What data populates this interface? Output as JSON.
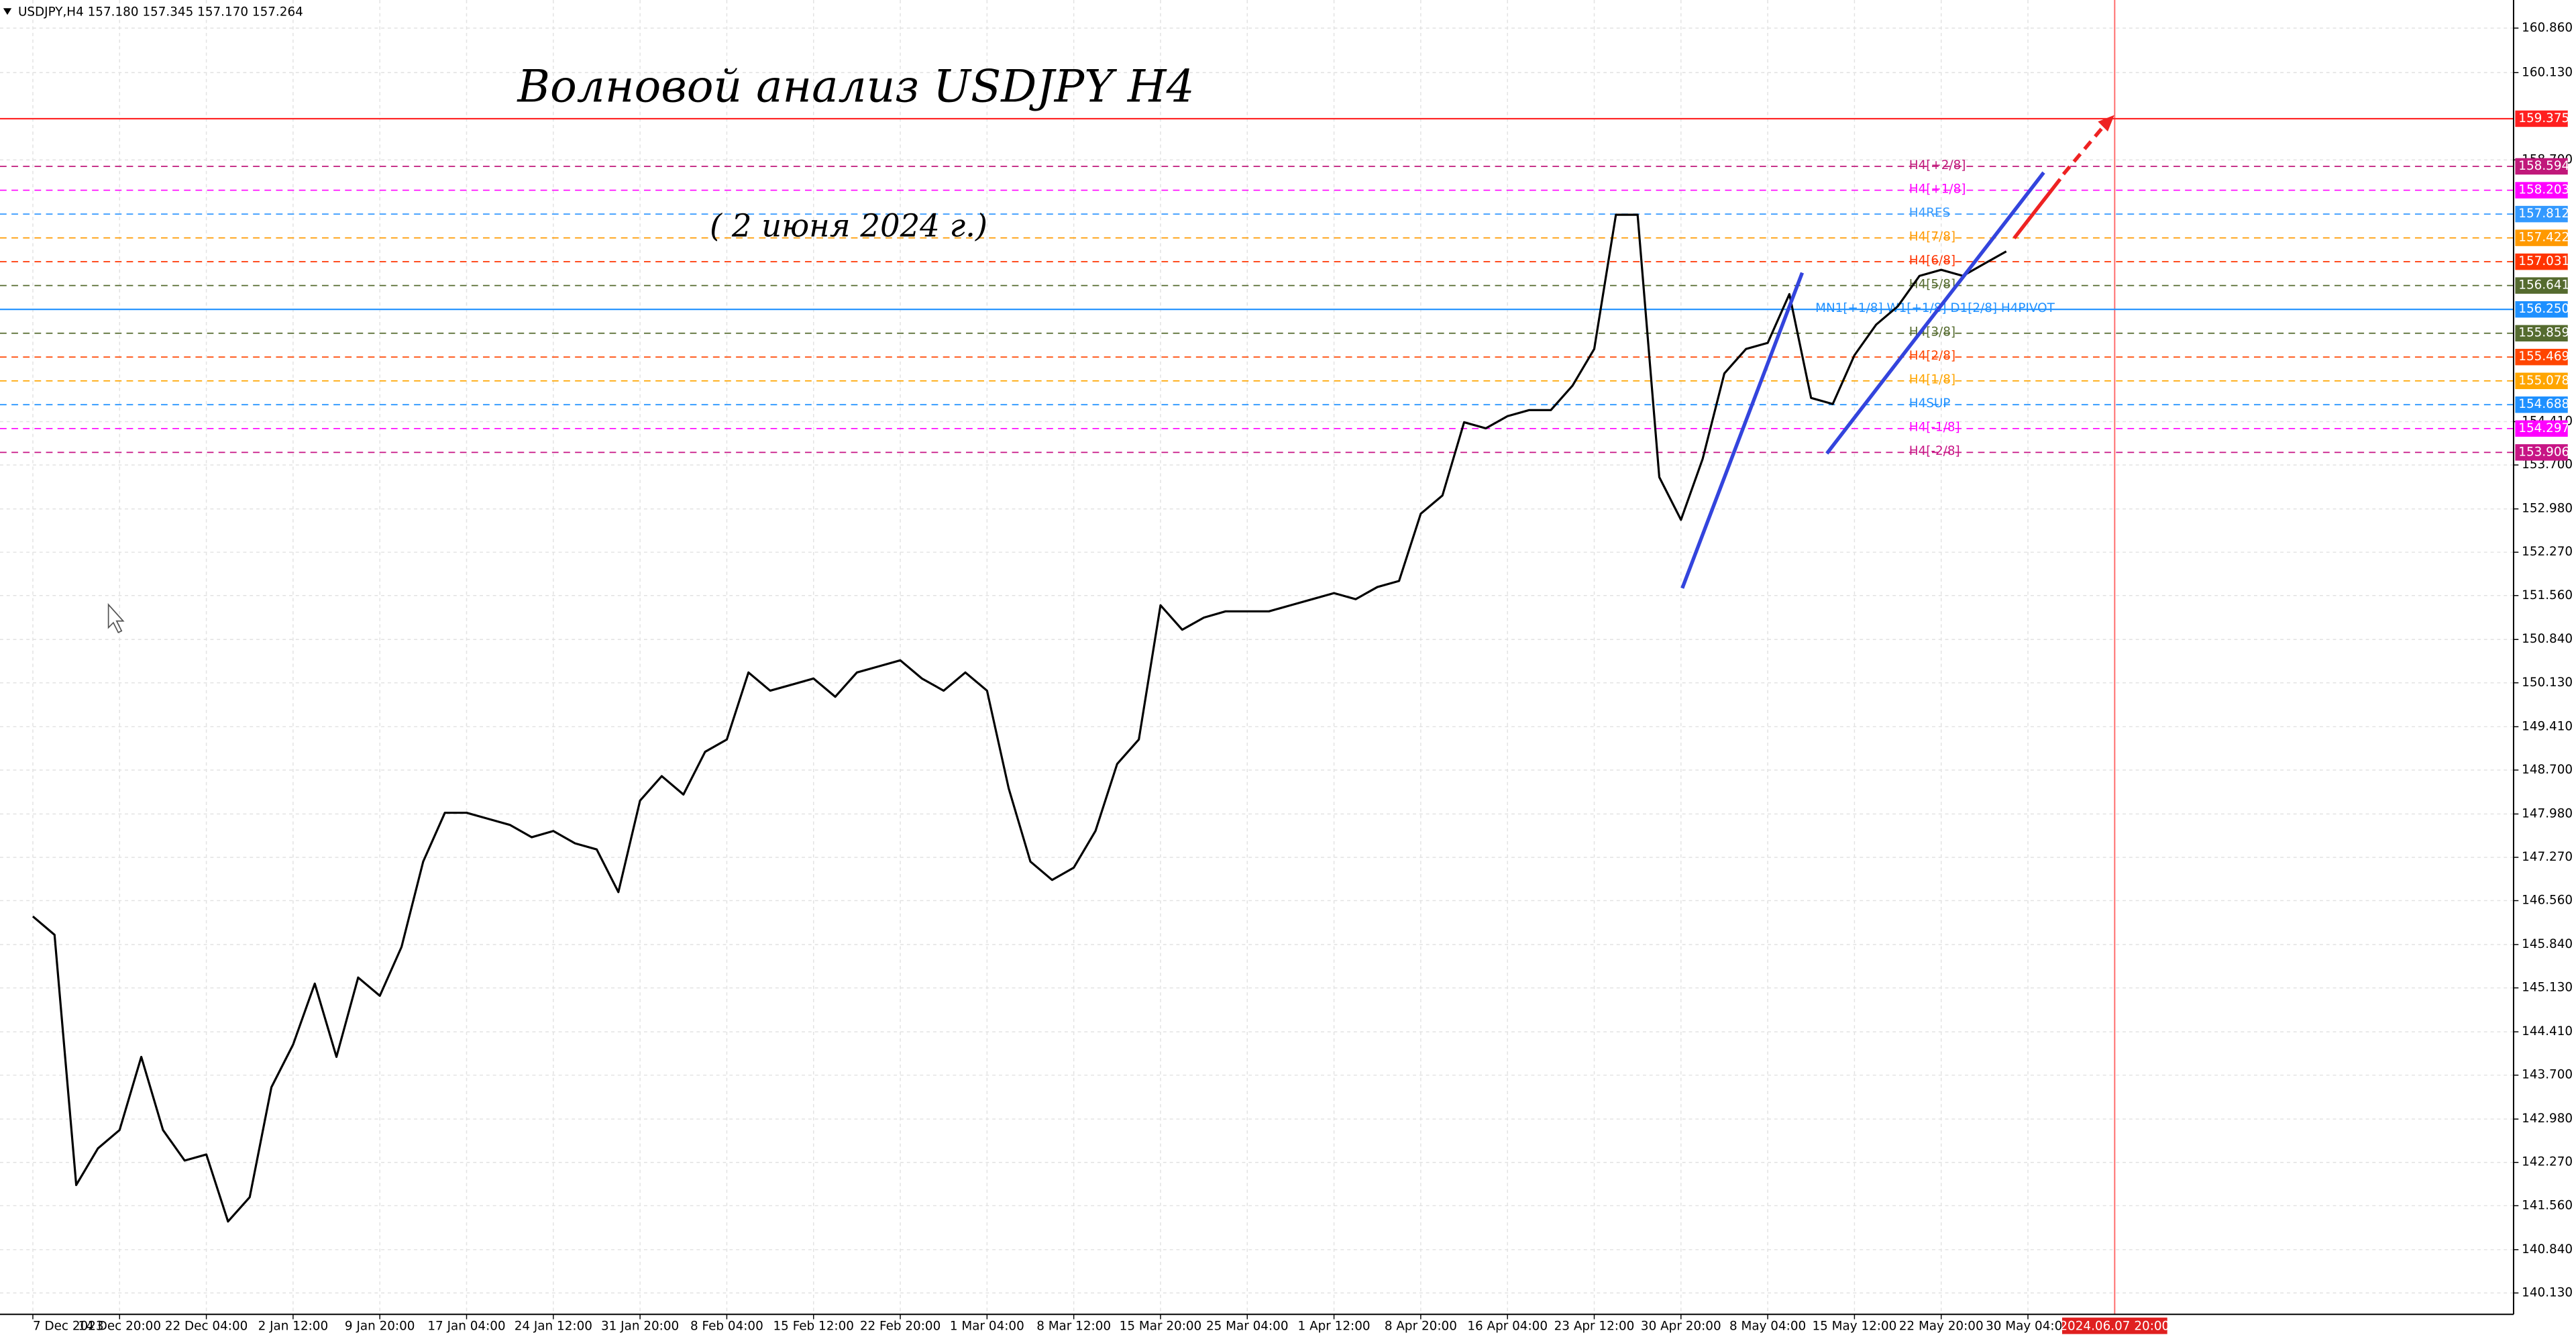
{
  "chart_data": {
    "type": "line",
    "symbol_info": "USDJPY,H4  157.180 157.345 157.170 157.264",
    "title": "Волновой анализ USDJPY H4",
    "subtitle": "( 2 июня 2024 г.)",
    "color": "#000000",
    "grid": true,
    "categories": [
      "7 Dec 2023",
      null,
      null,
      null,
      "14 Dec 20:00",
      null,
      null,
      null,
      "22 Dec 04:00",
      null,
      null,
      null,
      "2 Jan 12:00",
      null,
      null,
      null,
      "9 Jan 20:00",
      null,
      null,
      null,
      "17 Jan 04:00",
      null,
      null,
      null,
      "24 Jan 12:00",
      null,
      null,
      null,
      "31 Jan 20:00",
      null,
      null,
      null,
      "8 Feb 04:00",
      null,
      null,
      null,
      "15 Feb 12:00",
      null,
      null,
      null,
      "22 Feb 20:00",
      null,
      null,
      null,
      "1 Mar 04:00",
      null,
      null,
      null,
      "8 Mar 12:00",
      null,
      null,
      null,
      "15 Mar 20:00",
      null,
      null,
      null,
      "25 Mar 04:00",
      null,
      null,
      null,
      "1 Apr 12:00",
      null,
      null,
      null,
      "8 Apr 20:00",
      null,
      null,
      null,
      "16 Apr 04:00",
      null,
      null,
      null,
      "23 Apr 12:00",
      null,
      null,
      null,
      "30 Apr 20:00",
      null,
      null,
      null,
      "8 May 04:00",
      null,
      null,
      null,
      "15 May 12:00",
      null,
      null,
      null,
      "22 May 20:00",
      null,
      null,
      null,
      "30 May 04:00",
      null,
      null,
      null,
      "2024.06.07 20:00"
    ],
    "values": [
      146.3,
      146.0,
      141.9,
      142.5,
      142.8,
      144.0,
      142.8,
      142.3,
      142.4,
      141.3,
      141.7,
      143.5,
      144.2,
      145.2,
      144.0,
      145.3,
      145.0,
      145.8,
      147.2,
      148.0,
      148.0,
      147.9,
      147.8,
      147.6,
      147.7,
      147.5,
      147.4,
      146.7,
      148.2,
      148.6,
      148.3,
      149.0,
      149.2,
      150.3,
      150.0,
      150.1,
      150.2,
      149.9,
      150.3,
      150.4,
      150.5,
      150.2,
      150.0,
      150.3,
      150.0,
      148.4,
      147.2,
      146.9,
      147.1,
      147.7,
      148.8,
      149.2,
      151.4,
      151.0,
      151.2,
      151.3,
      151.3,
      151.3,
      151.4,
      151.5,
      151.6,
      151.5,
      151.7,
      151.8,
      152.9,
      153.2,
      154.4,
      154.3,
      154.5,
      154.6,
      154.6,
      155.0,
      155.6,
      157.8,
      157.8,
      153.5,
      152.8,
      153.8,
      155.2,
      155.6,
      155.7,
      156.5,
      154.8,
      154.7,
      155.5,
      156.0,
      156.3,
      156.8,
      156.9,
      156.8,
      157.0,
      157.2,
      null,
      null,
      null,
      null,
      null
    ],
    "ylim": [
      139.78,
      161.32
    ],
    "yticks": [
      {
        "value": 140.13,
        "label": "140.130"
      },
      {
        "value": 140.84,
        "label": "140.840"
      },
      {
        "value": 141.56,
        "label": "141.560"
      },
      {
        "value": 142.27,
        "label": "142.270"
      },
      {
        "value": 142.98,
        "label": "142.980"
      },
      {
        "value": 143.7,
        "label": "143.700"
      },
      {
        "value": 144.41,
        "label": "144.410"
      },
      {
        "value": 145.13,
        "label": "145.130"
      },
      {
        "value": 145.84,
        "label": "145.840"
      },
      {
        "value": 146.56,
        "label": "146.560"
      },
      {
        "value": 147.27,
        "label": "147.270"
      },
      {
        "value": 147.98,
        "label": "147.980"
      },
      {
        "value": 148.7,
        "label": "148.700"
      },
      {
        "value": 149.41,
        "label": "149.410"
      },
      {
        "value": 150.13,
        "label": "150.130"
      },
      {
        "value": 150.84,
        "label": "150.840"
      },
      {
        "value": 151.56,
        "label": "151.560"
      },
      {
        "value": 152.27,
        "label": "152.270"
      },
      {
        "value": 152.98,
        "label": "152.980"
      },
      {
        "value": 153.7,
        "label": "153.700"
      },
      {
        "value": 154.41,
        "label": "154.410"
      },
      {
        "value": 158.7,
        "label": "158.700"
      },
      {
        "value": 160.13,
        "label": "160.130"
      },
      {
        "value": 160.86,
        "label": "160.860"
      }
    ],
    "levels": [
      {
        "value": 159.375,
        "label": "159.375",
        "color": "#ff2020",
        "style": "solid"
      },
      {
        "name": "H4[+2/8]",
        "value": 158.594,
        "label": "158.594",
        "color": "#c0187a",
        "style": "dashed"
      },
      {
        "name": "H4[+1/8]",
        "value": 158.203,
        "label": "158.203",
        "color": "#ff00ff",
        "style": "dashed"
      },
      {
        "name": "H4RES",
        "value": 157.812,
        "label": "157.812",
        "color": "#3399ff",
        "style": "dashed"
      },
      {
        "name": "H4[7/8]",
        "value": 157.422,
        "label": "157.422",
        "color": "#ff9900",
        "style": "dashed"
      },
      {
        "name": "H4[6/8]",
        "value": 157.031,
        "label": "157.031",
        "color": "#ff3300",
        "style": "dashed"
      },
      {
        "name": "H4[5/8]",
        "value": 156.641,
        "label": "156.641",
        "color": "#556b2f",
        "style": "dashed"
      },
      {
        "name": "MN1[+1/8] W1[+1/8] D1[2/8] H4PIVOT",
        "value": 156.25,
        "label": "156.250",
        "color": "#1e90ff",
        "style": "solid"
      },
      {
        "name": "H4[3/8]",
        "value": 155.859,
        "label": "155.859",
        "color": "#556b2f",
        "style": "dashed"
      },
      {
        "name": "H4[2/8]",
        "value": 155.469,
        "label": "155.469",
        "color": "#ff4500",
        "style": "dashed"
      },
      {
        "name": "H4[1/8]",
        "value": 155.078,
        "label": "155.078",
        "color": "#ffa500",
        "style": "dashed"
      },
      {
        "name": "H4SUP",
        "value": 154.688,
        "label": "154.688",
        "color": "#1e90ff",
        "style": "dashed"
      },
      {
        "name": "H4[-1/8]",
        "value": 154.297,
        "label": "154.297",
        "color": "#ff00ff",
        "style": "dashed"
      },
      {
        "name": "H4[-2/8]",
        "value": 153.906,
        "label": "153.906",
        "color": "#c71585",
        "style": "dashed"
      }
    ]
  }
}
